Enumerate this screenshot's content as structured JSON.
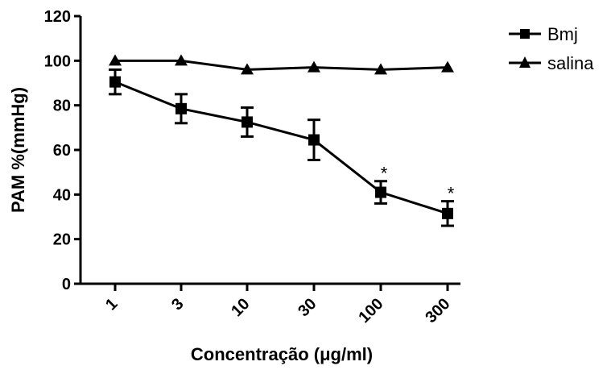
{
  "chart_data": {
    "type": "line",
    "xlabel": "Concentração (μg/ml)",
    "ylabel": "PAM %(mmHg)",
    "categories": [
      "1",
      "3",
      "10",
      "30",
      "100",
      "300"
    ],
    "ylim": [
      0,
      120
    ],
    "yticks": [
      0,
      20,
      40,
      60,
      80,
      100,
      120
    ],
    "grid": false,
    "legend_position": "top-right",
    "series": [
      {
        "name": "Bmj",
        "marker": "square",
        "values": [
          90.5,
          78.5,
          72.5,
          64.5,
          41,
          31.5
        ],
        "error": [
          5.5,
          6.5,
          6.5,
          9,
          5,
          5.5
        ],
        "annotations": [
          "",
          "",
          "",
          "",
          "*",
          "*"
        ]
      },
      {
        "name": "salina",
        "marker": "triangle",
        "values": [
          100,
          100,
          96,
          97,
          96,
          97
        ]
      }
    ]
  }
}
